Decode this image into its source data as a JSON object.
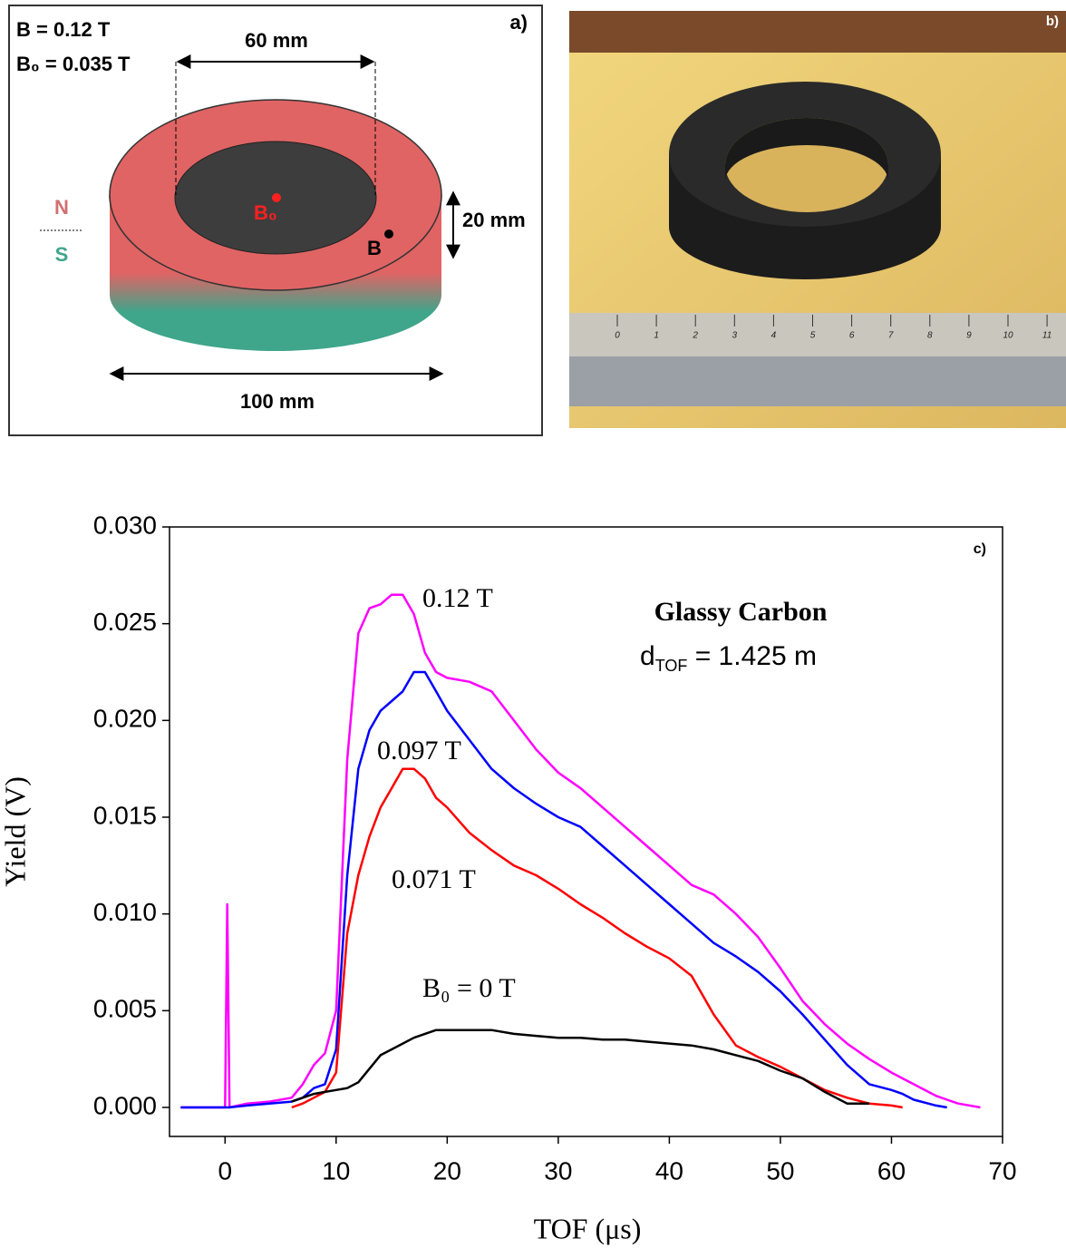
{
  "panel_a": {
    "label": "a)",
    "field_b": "B = 0.12 T",
    "field_b0": "B₀ = 0.035 T",
    "inner_diameter": "60 mm",
    "height": "20 mm",
    "outer_diameter": "100 mm",
    "north": "N",
    "south": "S",
    "point_b0": "B₀",
    "point_b": "B"
  },
  "panel_b": {
    "label": "b)",
    "ruler_labels": [
      "0",
      "1",
      "2",
      "3",
      "4",
      "5",
      "6",
      "7",
      "8",
      "9",
      "10",
      "11"
    ]
  },
  "chart_data": {
    "type": "line",
    "panel_label": "c)",
    "x_label": "TOF (μs)",
    "y_label": "Yield (V)",
    "annotation_title": "Glassy Carbon",
    "annotation_distance": {
      "main": "d",
      "sub": "TOF",
      "rest": " = 1.425 m"
    },
    "xlim": [
      -5,
      70
    ],
    "ylim": [
      -0.0015,
      0.03
    ],
    "xticks": [
      0,
      10,
      20,
      30,
      40,
      50,
      60,
      70
    ],
    "yticks": [
      {
        "value": 0,
        "label": "0.000"
      },
      {
        "value": 0.005,
        "label": "0.005"
      },
      {
        "value": 0.01,
        "label": "0.010"
      },
      {
        "value": 0.015,
        "label": "0.015"
      },
      {
        "value": 0.02,
        "label": "0.020"
      },
      {
        "value": 0.025,
        "label": "0.025"
      },
      {
        "value": 0.03,
        "label": "0.030"
      }
    ],
    "x": [
      -4,
      -2,
      0,
      0.2,
      0.4,
      2,
      4,
      6,
      7,
      8,
      9,
      10,
      11,
      12,
      13,
      14,
      15,
      16,
      17,
      18,
      19,
      20,
      22,
      24,
      26,
      28,
      30,
      32,
      34,
      36,
      38,
      40,
      42,
      44,
      46,
      48,
      50,
      52,
      54,
      56,
      58,
      60,
      61,
      62,
      64,
      65,
      66,
      68
    ],
    "series": [
      {
        "name": "0.12 T",
        "color": "#ff00ff",
        "values": [
          0,
          0,
          0,
          0.0105,
          0,
          0.0002,
          0.0003,
          0.0005,
          0.0012,
          0.0022,
          0.0028,
          0.005,
          0.018,
          0.0245,
          0.0258,
          0.026,
          0.0265,
          0.0265,
          0.0255,
          0.0235,
          0.0225,
          0.0222,
          0.022,
          0.0215,
          0.02,
          0.0185,
          0.0173,
          0.0165,
          0.0155,
          0.0145,
          0.0135,
          0.0125,
          0.0115,
          0.011,
          0.01,
          0.0088,
          0.0072,
          0.0055,
          0.0043,
          0.0033,
          0.0025,
          0.0018,
          0.0015,
          0.0012,
          0.0006,
          0.0004,
          0.0002,
          0
        ]
      },
      {
        "name": "0.097 T",
        "color": "#0000ff",
        "values": [
          0,
          0,
          0,
          0,
          0,
          0.0001,
          0.0002,
          0.0003,
          0.0005,
          0.001,
          0.0012,
          0.003,
          0.012,
          0.0175,
          0.0195,
          0.0205,
          0.021,
          0.0215,
          0.0225,
          0.0225,
          0.0215,
          0.0205,
          0.019,
          0.0175,
          0.0165,
          0.0157,
          0.015,
          0.0145,
          0.0135,
          0.0125,
          0.0115,
          0.0105,
          0.0095,
          0.0085,
          0.0078,
          0.007,
          0.006,
          0.0048,
          0.0035,
          0.0022,
          0.0012,
          0.0009,
          0.0007,
          0.0004,
          0.0001,
          0,
          null,
          null
        ]
      },
      {
        "name": "0.071 T",
        "color": "#ff0000",
        "values": [
          null,
          null,
          null,
          null,
          null,
          null,
          null,
          0,
          0.0002,
          0.0005,
          0.0008,
          0.0018,
          0.009,
          0.012,
          0.014,
          0.0155,
          0.0165,
          0.0175,
          0.0175,
          0.017,
          0.016,
          0.0155,
          0.0142,
          0.0133,
          0.0125,
          0.012,
          0.0113,
          0.0105,
          0.0098,
          0.009,
          0.0083,
          0.0077,
          0.0068,
          0.0048,
          0.0032,
          0.0026,
          0.0021,
          0.0015,
          0.0009,
          0.0005,
          0.0002,
          0.0001,
          0,
          null,
          null,
          null,
          null,
          null
        ]
      },
      {
        "name": "B₀ = 0 T",
        "color": "#000000",
        "values": [
          null,
          null,
          null,
          null,
          null,
          null,
          null,
          0.0003,
          0.0005,
          0.0007,
          0.0008,
          0.0009,
          0.001,
          0.0013,
          0.002,
          0.0027,
          0.003,
          0.0033,
          0.0036,
          0.0038,
          0.004,
          0.004,
          0.004,
          0.004,
          0.0038,
          0.0037,
          0.0036,
          0.0036,
          0.0035,
          0.0035,
          0.0034,
          0.0033,
          0.0032,
          0.003,
          0.0027,
          0.0024,
          0.0019,
          0.0015,
          0.0008,
          0.0002,
          0.0002,
          null,
          null,
          null,
          null,
          null,
          null,
          null
        ]
      }
    ]
  }
}
